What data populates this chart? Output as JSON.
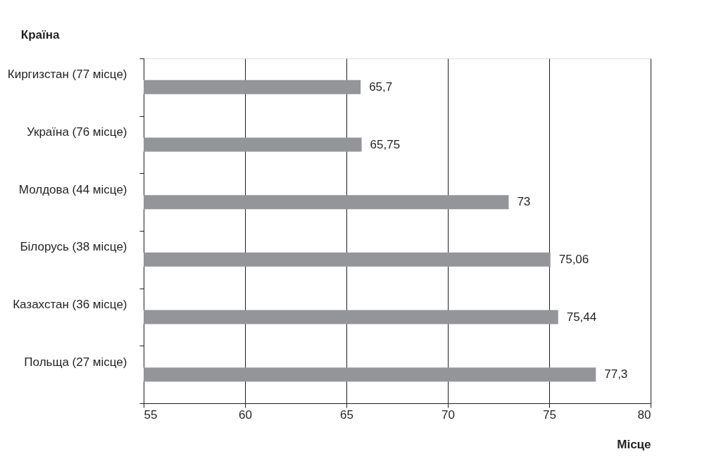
{
  "chart_data": {
    "type": "bar",
    "orientation": "horizontal",
    "xlabel": "Місце",
    "ylabel": "Країна",
    "categories": [
      "Киргизстан (77 місце)",
      "Україна (76 місце)",
      "Молдова (44 місце)",
      "Білорусь  (38 місце)",
      "Казахстан (36 місце)",
      "Польща (27 місце)"
    ],
    "values": [
      65.7,
      65.75,
      73,
      75.06,
      75.44,
      77.3
    ],
    "value_labels": [
      "65,7",
      "65,75",
      "73",
      "75,06",
      "75,44",
      "77,3"
    ],
    "color": "#939598",
    "xlim": [
      55,
      80
    ],
    "xticks": [
      55,
      60,
      65,
      70,
      75,
      80
    ],
    "grid": "x"
  }
}
